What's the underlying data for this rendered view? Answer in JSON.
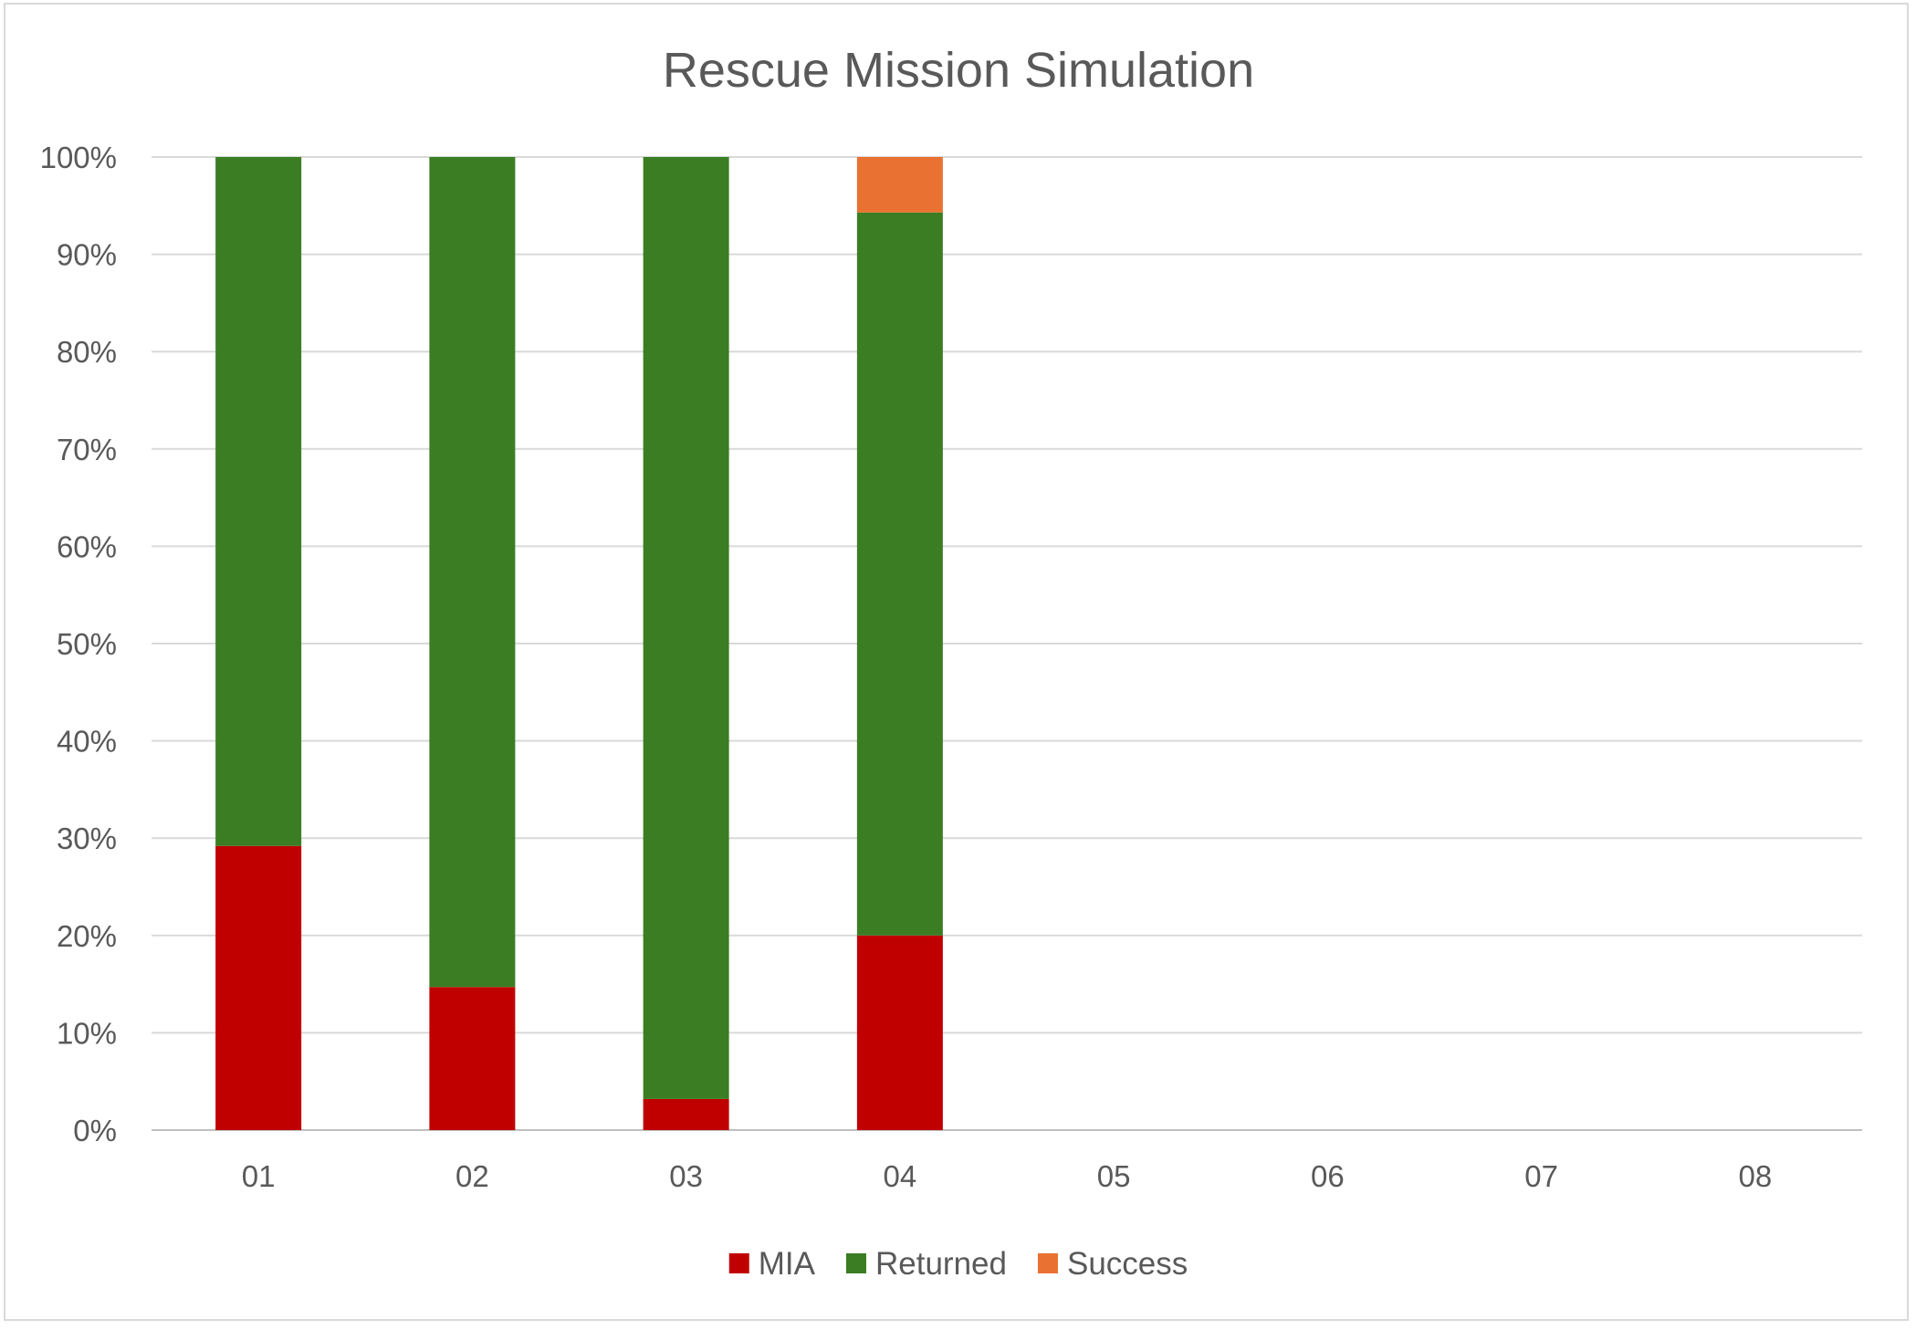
{
  "chart_data": {
    "type": "bar",
    "stacked": true,
    "title": "Rescue Mission Simulation",
    "categories": [
      "01",
      "02",
      "03",
      "04",
      "05",
      "06",
      "07",
      "08"
    ],
    "series": [
      {
        "name": "MIA",
        "color": "#c00000",
        "values": [
          29.2,
          14.7,
          3.2,
          20.0,
          null,
          null,
          null,
          null
        ]
      },
      {
        "name": "Returned",
        "color": "#3b7d23",
        "values": [
          70.8,
          85.3,
          96.8,
          74.3,
          null,
          null,
          null,
          null
        ]
      },
      {
        "name": "Success",
        "color": "#e97132",
        "values": [
          0,
          0,
          0,
          5.7,
          null,
          null,
          null,
          null
        ]
      }
    ],
    "ylim": [
      0,
      100
    ],
    "yticks": [
      "0%",
      "10%",
      "20%",
      "30%",
      "40%",
      "50%",
      "60%",
      "70%",
      "80%",
      "90%",
      "100%"
    ],
    "grid": true,
    "legend_position": "bottom"
  }
}
